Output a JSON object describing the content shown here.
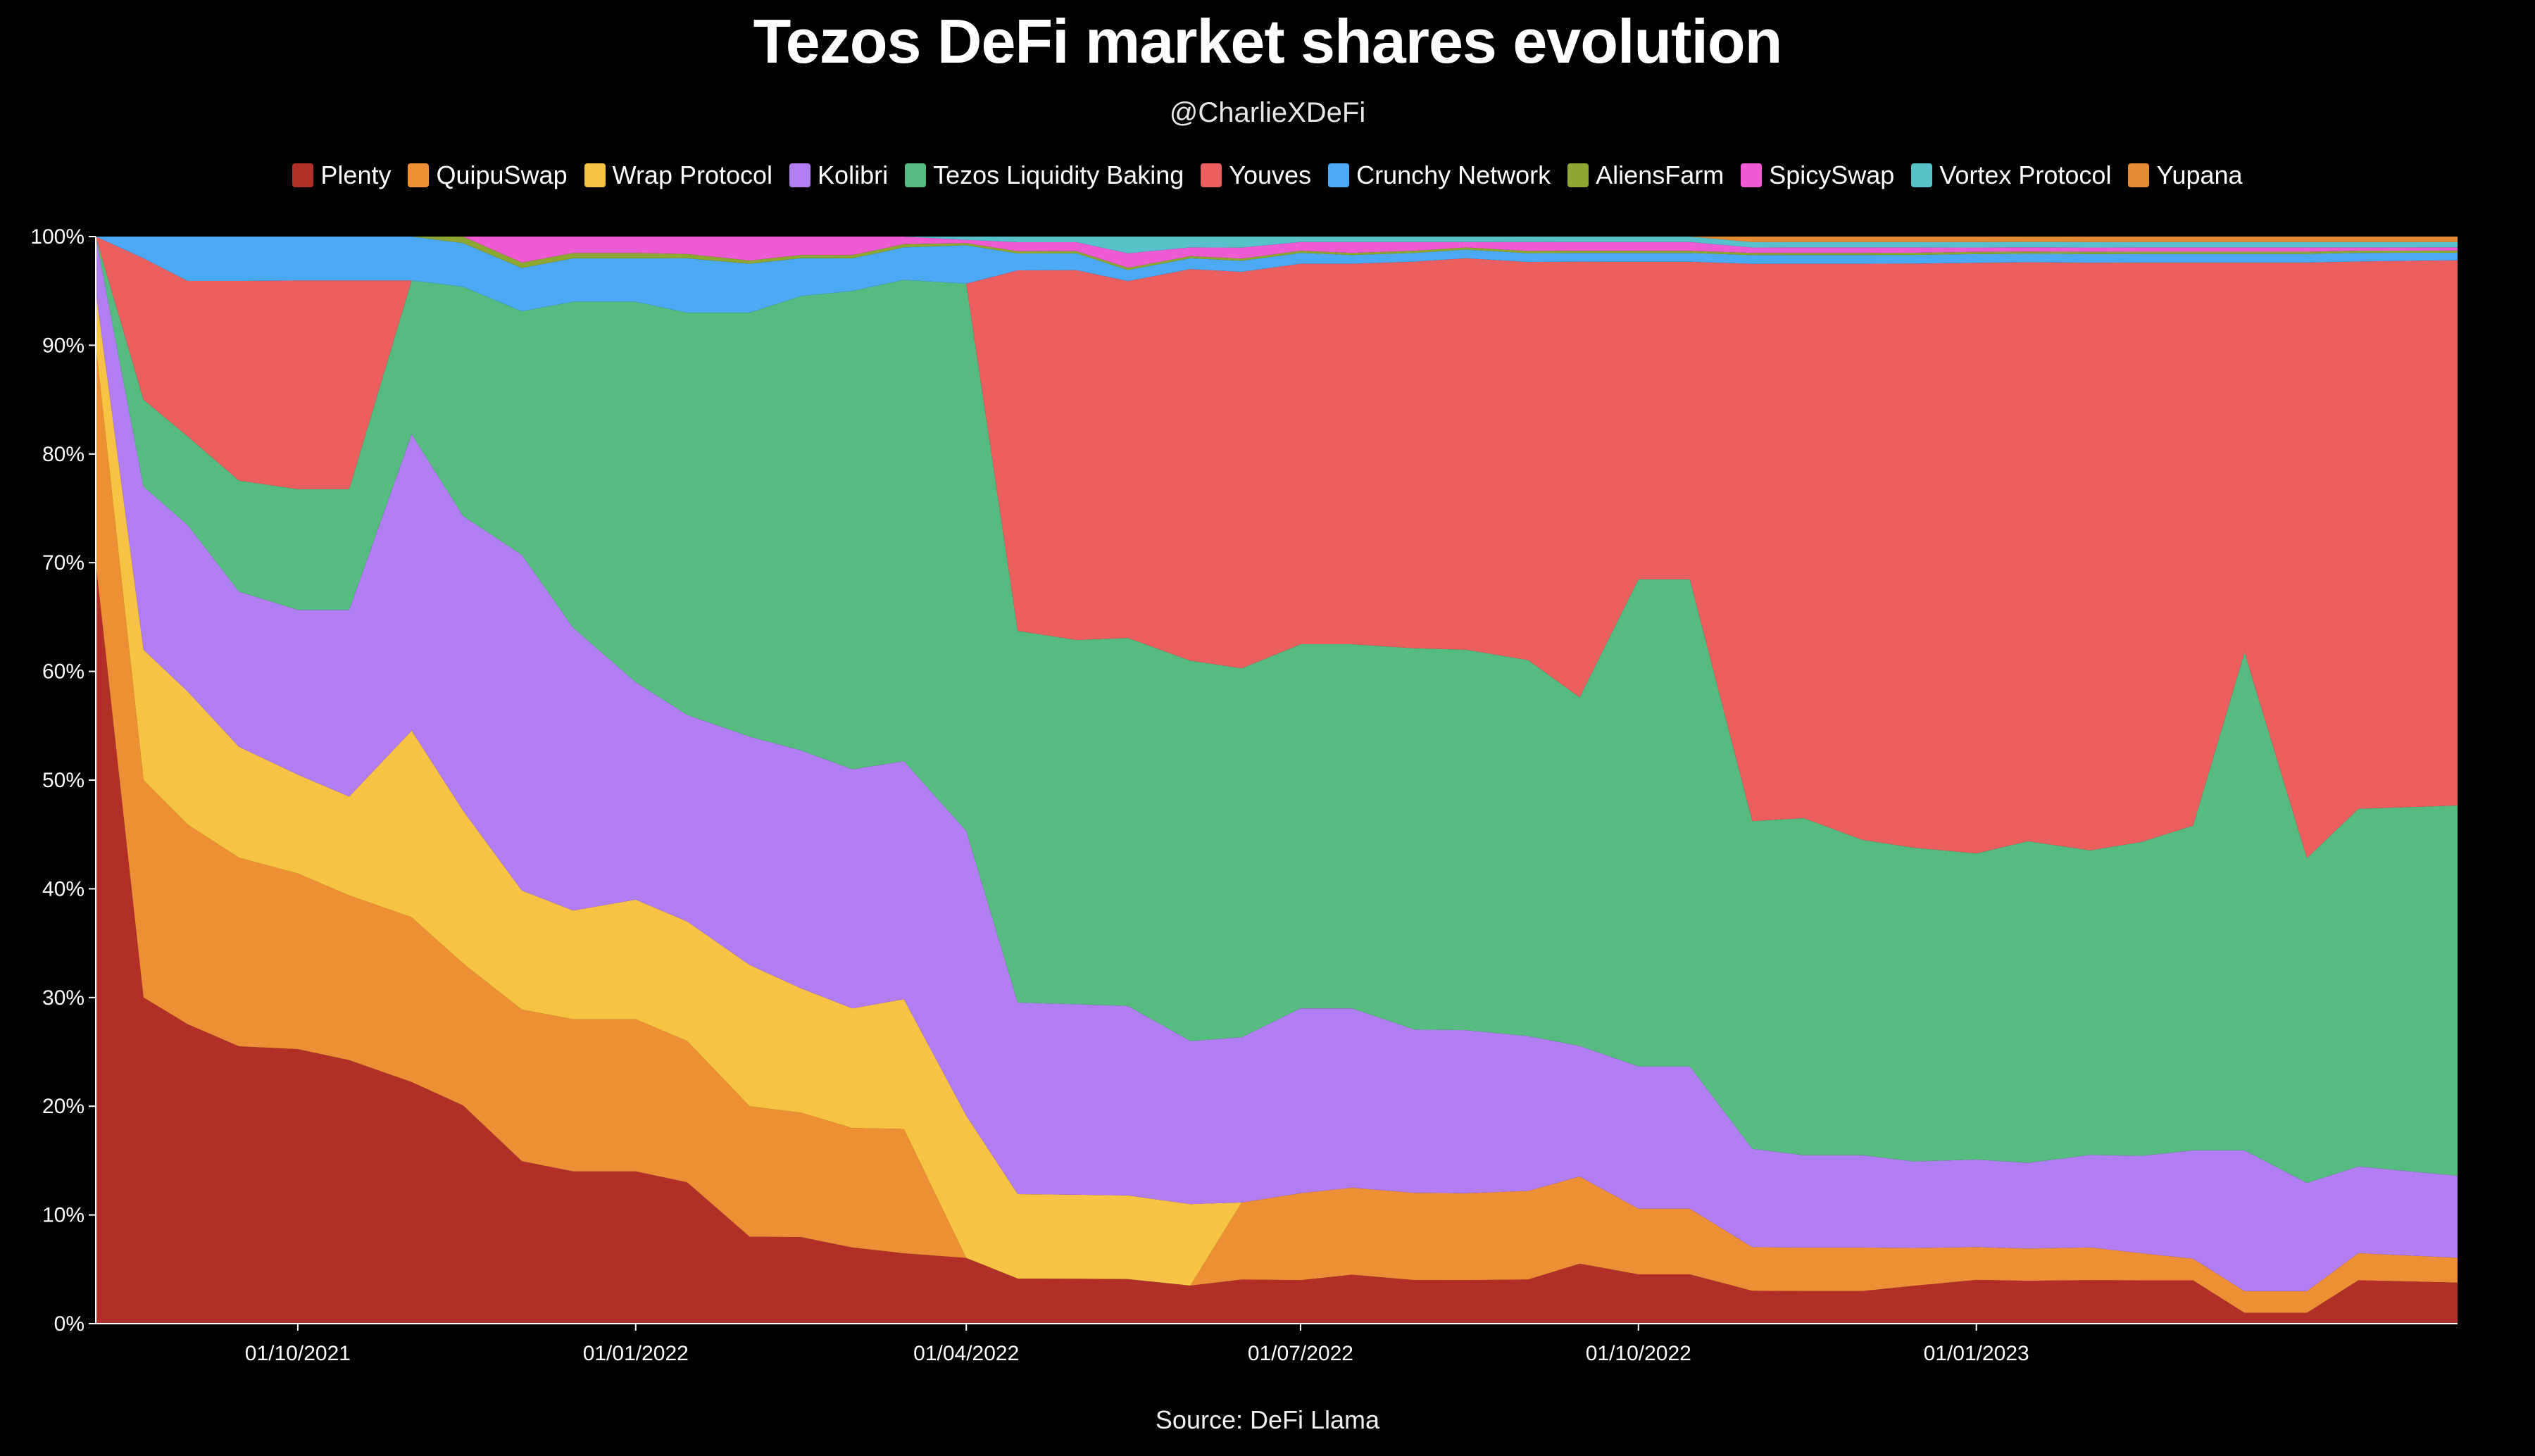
{
  "chart_data": {
    "type": "area",
    "stacking": "percent",
    "title": "Tezos DeFi market shares evolution",
    "subtitle": "@CharlieXDeFi",
    "source": "Source: DeFi Llama",
    "xlabel": "",
    "ylabel": "",
    "ylim": [
      0,
      100
    ],
    "xlim": [
      "2021-08-07",
      "2023-05-12"
    ],
    "y_ticks": [
      "0%",
      "10%",
      "20%",
      "30%",
      "40%",
      "50%",
      "60%",
      "70%",
      "80%",
      "90%",
      "100%"
    ],
    "x_ticks": [
      "01/10/2021",
      "01/01/2022",
      "01/04/2022",
      "01/07/2022",
      "01/10/2022",
      "01/01/2023"
    ],
    "x_tick_dates": [
      "2021-10-01",
      "2022-01-01",
      "2022-04-01",
      "2022-07-01",
      "2022-10-01",
      "2023-01-01"
    ],
    "legend_position": "top-center",
    "grid": false,
    "x": [
      "2021-08-07",
      "2021-08-20",
      "2021-09-01",
      "2021-09-15",
      "2021-10-01",
      "2021-10-15",
      "2021-11-01",
      "2021-11-15",
      "2021-12-01",
      "2021-12-15",
      "2022-01-01",
      "2022-01-15",
      "2022-02-01",
      "2022-02-15",
      "2022-03-01",
      "2022-03-15",
      "2022-04-01",
      "2022-04-15",
      "2022-05-01",
      "2022-05-15",
      "2022-06-01",
      "2022-06-15",
      "2022-07-01",
      "2022-07-15",
      "2022-08-01",
      "2022-08-15",
      "2022-09-01",
      "2022-09-15",
      "2022-10-01",
      "2022-10-15",
      "2022-11-01",
      "2022-11-15",
      "2022-12-01",
      "2022-12-15",
      "2023-01-01",
      "2023-01-15",
      "2023-02-01",
      "2023-02-15",
      "2023-03-01",
      "2023-03-15",
      "2023-04-01",
      "2023-04-15",
      "2023-05-12"
    ],
    "series": [
      {
        "name": "Plenty",
        "color": "#b03029",
        "values": [
          70,
          30,
          27,
          25,
          25,
          24,
          22,
          20,
          15,
          14,
          14,
          13,
          8,
          8,
          7,
          6.5,
          6,
          4,
          4,
          4,
          3.5,
          4,
          4,
          4.5,
          4,
          4,
          4,
          5.5,
          4.5,
          4.5,
          3,
          3,
          3,
          3.5,
          4,
          4,
          4,
          4,
          4,
          1,
          1,
          4,
          3.8
        ]
      },
      {
        "name": "QuipuSwap",
        "color": "#ef8f35",
        "values": [
          20,
          20,
          18,
          17,
          16,
          15,
          15,
          13,
          14,
          14,
          14,
          13,
          12,
          11.5,
          11,
          11.5,
          0,
          0,
          0,
          0,
          0,
          7,
          8,
          8,
          8,
          8,
          8,
          8,
          6,
          6,
          4,
          4,
          4,
          3.5,
          3,
          3,
          3,
          2.5,
          2,
          2,
          2,
          2.5,
          2.3
        ]
      },
      {
        "name": "Wrap Protocol",
        "color": "#f6c344",
        "values": [
          5,
          12,
          12,
          10,
          9,
          9,
          17,
          14,
          11,
          10,
          11,
          11,
          13,
          11.5,
          11,
          12,
          13,
          7.5,
          7.5,
          7.5,
          7.5,
          0,
          0,
          0,
          0,
          0,
          0,
          0,
          0,
          0,
          0,
          0,
          0,
          0,
          0,
          0,
          0,
          0,
          0,
          0,
          0,
          0,
          0
        ]
      },
      {
        "name": "Kolibri",
        "color": "#b07ef2",
        "values": [
          5,
          15,
          15,
          14,
          15,
          17,
          27,
          27,
          31,
          26,
          20,
          19,
          21,
          22,
          22,
          22,
          26,
          17,
          17,
          17,
          15,
          15,
          17,
          16.5,
          15,
          15,
          14,
          12,
          13,
          13,
          9,
          8.5,
          8.5,
          8,
          8,
          8,
          8.5,
          9,
          10,
          13,
          10,
          8,
          7.6
        ]
      },
      {
        "name": "Tezos Liquidity Baking",
        "color": "#55bb7f",
        "values": [
          0,
          8,
          8,
          10,
          11,
          11,
          14,
          21,
          22.5,
          30,
          35,
          37,
          39,
          42,
          44,
          44.5,
          50,
          33,
          32.5,
          33,
          35,
          33.5,
          33.5,
          33.5,
          35,
          35,
          34,
          32,
          44.5,
          44.5,
          30,
          31,
          29,
          29,
          28,
          30,
          28,
          29,
          30,
          46,
          30,
          33,
          34.3
        ]
      },
      {
        "name": "Youves",
        "color": "#ec5f5f",
        "values": [
          0,
          13,
          14,
          18,
          19,
          19,
          0,
          0,
          0,
          0,
          0,
          0,
          0,
          0,
          0,
          0,
          0,
          32,
          33,
          32,
          36,
          36,
          35,
          35,
          35.5,
          36,
          36,
          40,
          29,
          29,
          51,
          51,
          53,
          54,
          54,
          54,
          54,
          53.5,
          52,
          36,
          55,
          50.5,
          50.5
        ]
      },
      {
        "name": "Crunchy Network",
        "color": "#4ba9f5",
        "values": [
          0,
          2,
          4,
          4,
          4,
          4,
          4,
          4,
          4,
          4,
          4,
          5,
          4.5,
          3.5,
          3,
          3,
          3.5,
          1.5,
          1.5,
          1,
          1,
          1,
          1,
          0.8,
          0.8,
          0.8,
          0.8,
          0.8,
          0.8,
          0.8,
          0.8,
          0.8,
          0.8,
          0.8,
          0.8,
          0.8,
          0.8,
          0.8,
          0.8,
          0.8,
          0.8,
          0.8,
          0.7
        ]
      },
      {
        "name": "AliensFarm",
        "color": "#8ea832",
        "values": [
          0,
          0,
          0,
          0,
          0,
          0,
          0,
          0.6,
          0.5,
          0.5,
          0.5,
          0.4,
          0.3,
          0.3,
          0.3,
          0.3,
          0.2,
          0.2,
          0.2,
          0.2,
          0.2,
          0.2,
          0.2,
          0.2,
          0.2,
          0.2,
          0.2,
          0.2,
          0.2,
          0.2,
          0.2,
          0.2,
          0.2,
          0.2,
          0.2,
          0.2,
          0.2,
          0.2,
          0.2,
          0.2,
          0.2,
          0.2,
          0.2
        ]
      },
      {
        "name": "SpicySwap",
        "color": "#ee5bd3",
        "values": [
          0,
          0,
          0,
          0,
          0,
          0,
          0,
          0,
          2.4,
          1.5,
          1.5,
          1.6,
          2.2,
          1.7,
          1.7,
          0.7,
          0.3,
          0.8,
          0.8,
          1.3,
          0.8,
          1,
          0.8,
          1,
          0.8,
          0.5,
          0.8,
          0.8,
          0.8,
          0.8,
          0.5,
          0.5,
          0.5,
          0.5,
          0.4,
          0.4,
          0.4,
          0.4,
          0.4,
          0.4,
          0.4,
          0.3,
          0.3
        ]
      },
      {
        "name": "Vortex Protocol",
        "color": "#56c1c9",
        "values": [
          0,
          0,
          0,
          0,
          0,
          0,
          0,
          0,
          0,
          0,
          0,
          0,
          0,
          0,
          0,
          0,
          0.3,
          0.5,
          0.5,
          1.5,
          1,
          1,
          0.5,
          0.5,
          0.5,
          0.5,
          0.5,
          0.5,
          0.5,
          0.5,
          0.5,
          0.5,
          0.5,
          0.5,
          0.5,
          0.5,
          0.5,
          0.5,
          0.5,
          0.5,
          0.5,
          0.5,
          0.5
        ]
      },
      {
        "name": "Yupana",
        "color": "#e48a30",
        "values": [
          0,
          0,
          0,
          0,
          0,
          0,
          0,
          0,
          0,
          0,
          0,
          0,
          0,
          0,
          0,
          0,
          0,
          0,
          0,
          0,
          0,
          0,
          0,
          0,
          0,
          0,
          0,
          0,
          0,
          0,
          0.5,
          0.5,
          0.5,
          0.5,
          0.5,
          0.5,
          0.5,
          0.5,
          0.5,
          0.5,
          0.5,
          0.5,
          0.5
        ]
      }
    ]
  }
}
